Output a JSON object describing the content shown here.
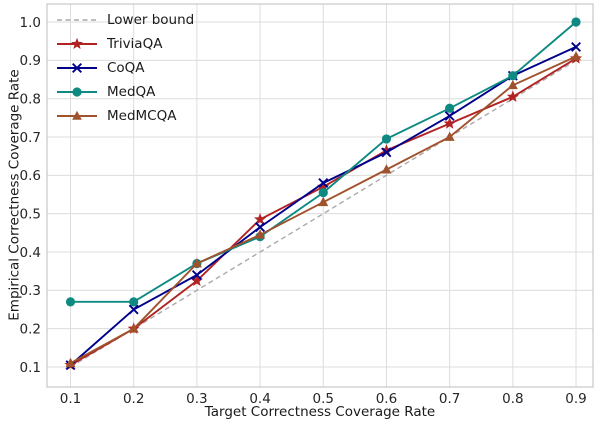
{
  "chart_data": {
    "type": "line",
    "xlabel": "Target Correctness Coverage Rate",
    "ylabel": "Empirical Correctness Coverage Rate",
    "x": [
      0.1,
      0.2,
      0.3,
      0.4,
      0.5,
      0.6,
      0.7,
      0.8,
      0.9
    ],
    "x_ticks": [
      0.1,
      0.2,
      0.3,
      0.4,
      0.5,
      0.6,
      0.7,
      0.8,
      0.9
    ],
    "y_ticks": [
      0.1,
      0.2,
      0.3,
      0.4,
      0.5,
      0.6,
      0.7,
      0.8,
      0.9,
      1.0
    ],
    "xlim": [
      0.06,
      0.93
    ],
    "ylim": [
      0.05,
      1.05
    ],
    "grid": true,
    "legend_position": "upper left",
    "series": [
      {
        "name": "Lower bound",
        "color": "#a9a9a9",
        "marker": "none",
        "dashed": true,
        "values": [
          0.1,
          0.2,
          0.3,
          0.4,
          0.5,
          0.6,
          0.7,
          0.8,
          0.9
        ]
      },
      {
        "name": "TriviaQA",
        "color": "#b22222",
        "marker": "star",
        "dashed": false,
        "values": [
          0.105,
          0.2,
          0.325,
          0.485,
          0.57,
          0.665,
          0.735,
          0.805,
          0.905
        ]
      },
      {
        "name": "CoQA",
        "color": "#00008b",
        "marker": "x",
        "dashed": false,
        "values": [
          0.105,
          0.25,
          0.34,
          0.465,
          0.58,
          0.66,
          0.755,
          0.86,
          0.935
        ]
      },
      {
        "name": "MedQA",
        "color": "#0e8a82",
        "marker": "circle",
        "dashed": false,
        "values": [
          0.27,
          0.27,
          0.37,
          0.44,
          0.555,
          0.695,
          0.775,
          0.86,
          1.0
        ]
      },
      {
        "name": "MedMCQA",
        "color": "#a0522d",
        "marker": "triangle",
        "dashed": false,
        "values": [
          0.11,
          0.2,
          0.37,
          0.445,
          0.53,
          0.615,
          0.7,
          0.835,
          0.91
        ]
      }
    ],
    "style": {
      "grid_color": "#dcdcdc",
      "spine_color": "#c8c8c8",
      "tick_label_color": "#262626",
      "text_color": "#1a1a1a"
    }
  }
}
